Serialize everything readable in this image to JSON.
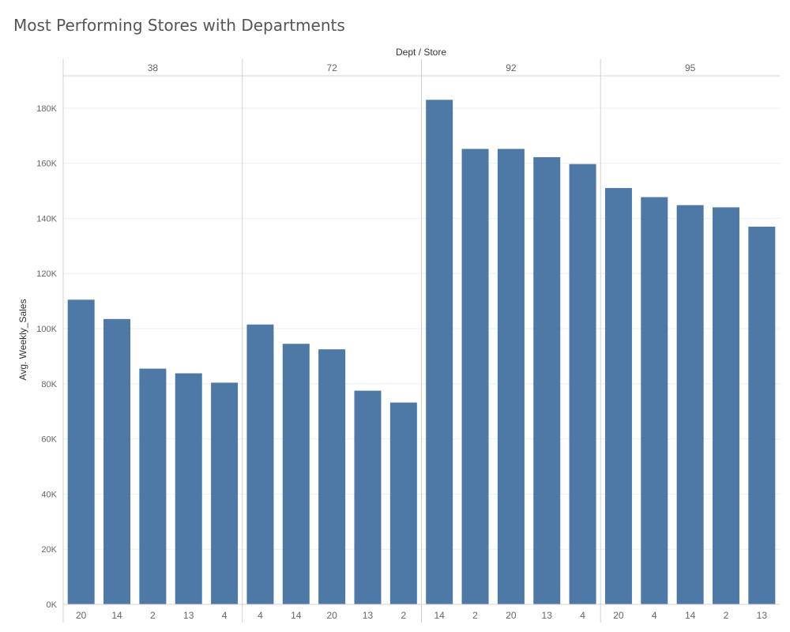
{
  "page": {
    "title": "Most Performing Stores with Departments"
  },
  "chart_data": {
    "type": "bar",
    "title": "Most Performing Stores with Departments",
    "xlabel": "Dept / Store",
    "ylabel": "Avg. Weekly_Sales",
    "ylim": [
      0,
      190000
    ],
    "yticks": [
      0,
      20000,
      40000,
      60000,
      80000,
      100000,
      120000,
      140000,
      160000,
      180000
    ],
    "ytick_labels": [
      "0K",
      "20K",
      "40K",
      "60K",
      "80K",
      "100K",
      "120K",
      "140K",
      "160K",
      "180K"
    ],
    "grid": true,
    "bar_color": "#4e79a7",
    "groups": [
      {
        "dept": "38",
        "stores": [
          "20",
          "14",
          "2",
          "13",
          "4"
        ],
        "values": [
          110500,
          103500,
          85500,
          83800,
          80400
        ]
      },
      {
        "dept": "72",
        "stores": [
          "4",
          "14",
          "20",
          "13",
          "2"
        ],
        "values": [
          101500,
          94500,
          92500,
          77500,
          73200
        ]
      },
      {
        "dept": "92",
        "stores": [
          "14",
          "2",
          "20",
          "13",
          "4"
        ],
        "values": [
          183000,
          165200,
          165200,
          162200,
          159700
        ]
      },
      {
        "dept": "95",
        "stores": [
          "20",
          "4",
          "14",
          "2",
          "13"
        ],
        "values": [
          151000,
          147700,
          144800,
          144000,
          137000
        ]
      }
    ]
  }
}
